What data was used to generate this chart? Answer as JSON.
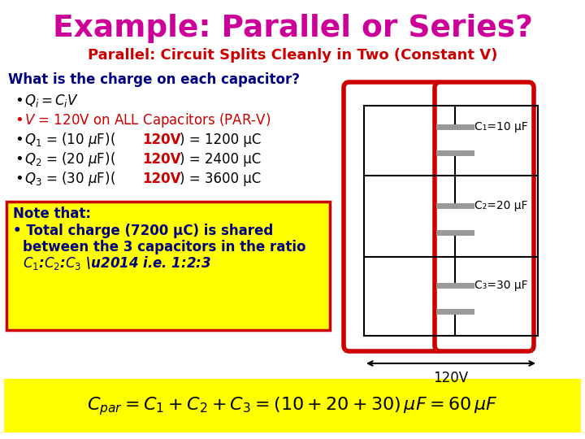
{
  "title": "Example: Parallel or Series?",
  "title_color": "#CC0099",
  "subtitle": "Parallel: Circuit Splits Cleanly in Two (Constant V)",
  "subtitle_color": "#CC0000",
  "bg_color": "#FFFFFF",
  "question": "What is the charge on each capacitor?",
  "question_color": "#000080",
  "note_bg": "#FFFF00",
  "note_border": "#CC0000",
  "note_text_color": "#000080",
  "formula_bg": "#FFFF00",
  "circuit_border_color": "#CC0000",
  "capacitor_labels": [
    "C₁=10 μF",
    "C₂=20 μF",
    "C₃=30 μF"
  ],
  "voltage_label": "120V",
  "black": "#000000",
  "red": "#CC0000",
  "plate_color": "#999999"
}
